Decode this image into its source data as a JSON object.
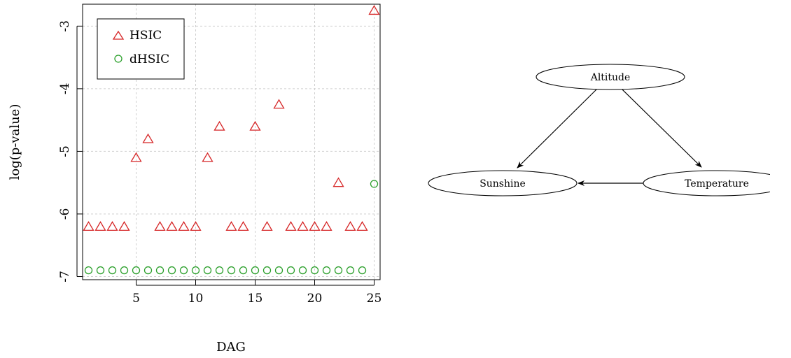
{
  "chart_data": {
    "type": "scatter",
    "title": "",
    "xlabel": "DAG",
    "ylabel": "log(p-value)",
    "xlim": [
      0.5,
      25.5
    ],
    "ylim": [
      -7.05,
      -2.65
    ],
    "xticks": [
      5,
      10,
      15,
      20,
      25
    ],
    "yticks": [
      -3,
      -4,
      -5,
      -6,
      -7
    ],
    "grid": true,
    "legend_position": "top-left",
    "x": [
      1,
      2,
      3,
      4,
      5,
      6,
      7,
      8,
      9,
      10,
      11,
      12,
      13,
      14,
      15,
      16,
      17,
      18,
      19,
      20,
      21,
      22,
      23,
      24,
      25
    ],
    "series": [
      {
        "name": "HSIC",
        "marker": "triangle",
        "color": "#d62728",
        "values": [
          -6.2,
          -6.2,
          -6.2,
          -6.2,
          -5.1,
          -4.8,
          -6.2,
          -6.2,
          -6.2,
          -6.2,
          -5.1,
          -4.6,
          -6.2,
          -6.2,
          -4.6,
          -6.2,
          -4.25,
          -6.2,
          -6.2,
          -6.2,
          -6.2,
          -5.5,
          -6.2,
          -6.2,
          -2.75
        ]
      },
      {
        "name": "dHSIC",
        "marker": "circle",
        "color": "#2ca02c",
        "values": [
          -6.9,
          -6.9,
          -6.9,
          -6.9,
          -6.9,
          -6.9,
          -6.9,
          -6.9,
          -6.9,
          -6.9,
          -6.9,
          -6.9,
          -6.9,
          -6.9,
          -6.9,
          -6.9,
          -6.9,
          -6.9,
          -6.9,
          -6.9,
          -6.9,
          -6.9,
          -6.9,
          -6.9,
          -5.52
        ]
      }
    ]
  },
  "dag": {
    "nodes": {
      "altitude": "Altitude",
      "sunshine": "Sunshine",
      "temperature": "Temperature"
    },
    "edges": [
      [
        "altitude",
        "sunshine"
      ],
      [
        "altitude",
        "temperature"
      ],
      [
        "temperature",
        "sunshine"
      ]
    ]
  }
}
